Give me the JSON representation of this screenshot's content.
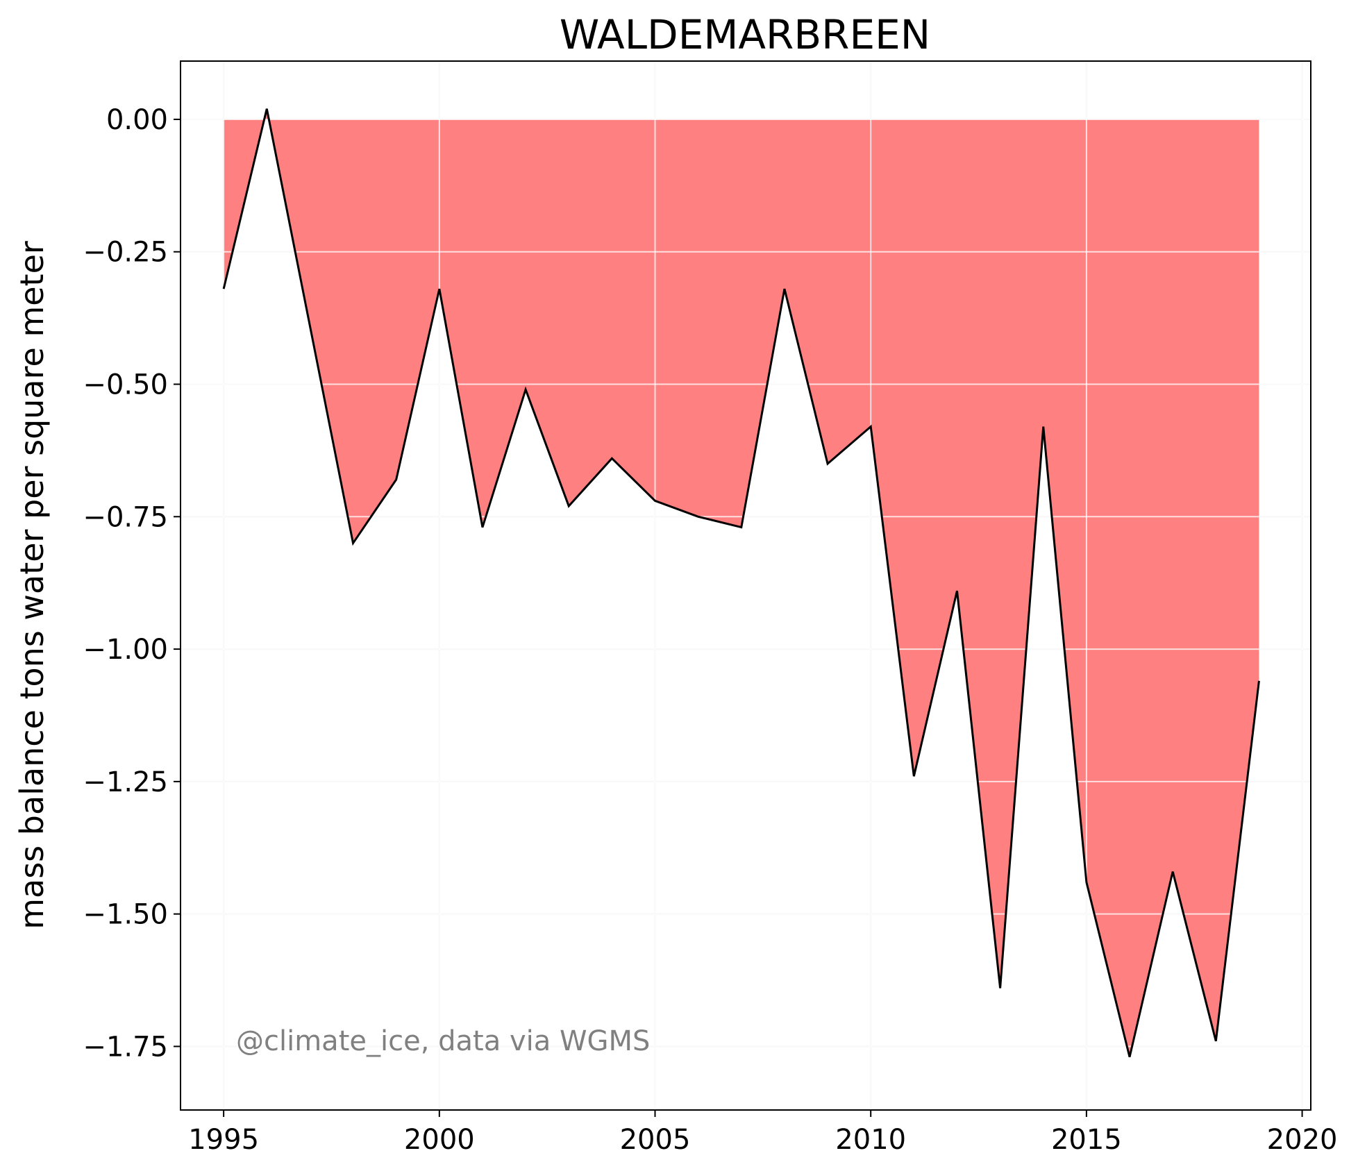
{
  "chart_data": {
    "type": "area",
    "title": "WALDEMARBREEN",
    "xlabel": "",
    "ylabel": "mass balance tons water per square meter",
    "annotation": "@climate_ice, data via WGMS",
    "xlim": [
      1994,
      2020.2
    ],
    "ylim": [
      -1.87,
      0.11
    ],
    "xticks": [
      1995,
      2000,
      2005,
      2010,
      2015,
      2020
    ],
    "yticks": [
      0.0,
      -0.25,
      -0.5,
      -0.75,
      -1.0,
      -1.25,
      -1.5,
      -1.75
    ],
    "ytick_labels": [
      "0.00",
      "−0.25",
      "−0.50",
      "−0.75",
      "−1.00",
      "−1.25",
      "−1.50",
      "−1.75"
    ],
    "grid": true,
    "fill_color": "#ff8080",
    "line_color": "#000000",
    "series": [
      {
        "x": [
          1995,
          1996,
          1997,
          1998,
          1999,
          2000,
          2001,
          2002,
          2003,
          2004,
          2005,
          2006,
          2007,
          2008,
          2009,
          2010,
          2011,
          2012,
          2013,
          2014,
          2015,
          2016,
          2017,
          2018,
          2019
        ],
        "values": [
          -0.32,
          0.02,
          -0.39,
          -0.8,
          -0.68,
          -0.32,
          -0.77,
          -0.51,
          -0.73,
          -0.64,
          -0.72,
          -0.75,
          -0.77,
          -0.32,
          -0.65,
          -0.58,
          -1.24,
          -0.89,
          -1.64,
          -0.58,
          -1.44,
          -1.77,
          -1.42,
          -1.74,
          -1.06
        ]
      }
    ]
  }
}
